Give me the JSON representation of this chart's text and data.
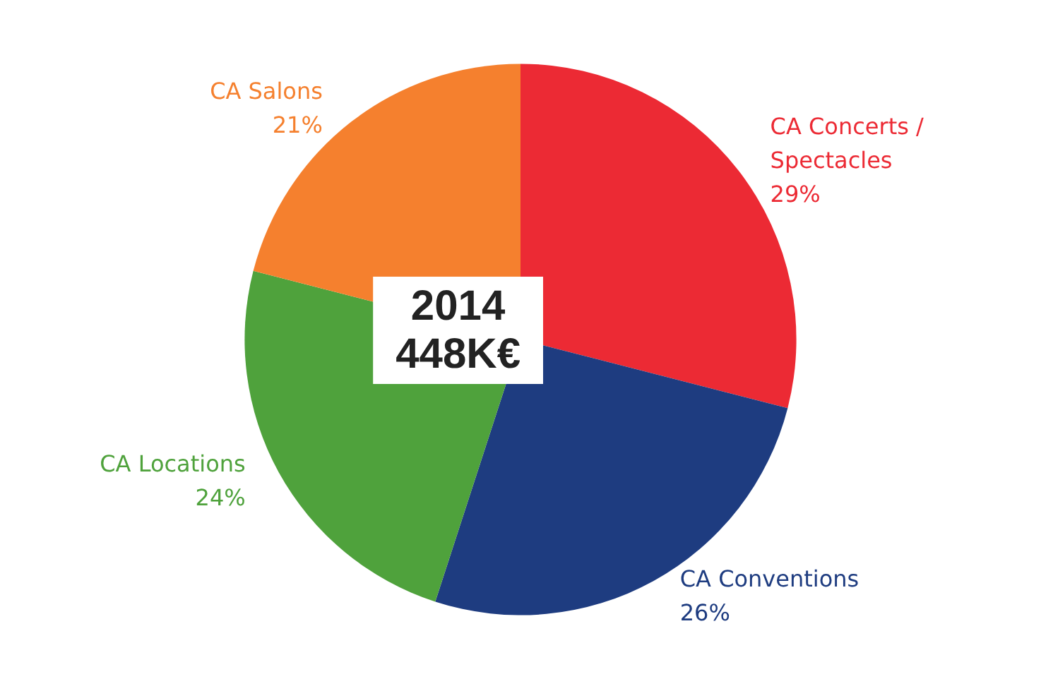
{
  "chart_data": {
    "type": "pie",
    "title": "2014",
    "subtitle": "448K€",
    "categories": [
      "CA Concerts / Spectacles",
      "CA Conventions",
      "CA Locations",
      "CA Salons"
    ],
    "values": [
      29,
      26,
      24,
      21
    ],
    "colors": [
      "#ec2a34",
      "#1e3c80",
      "#4fa23c",
      "#f5802e"
    ],
    "value_labels": [
      "29%",
      "26%",
      "24%",
      "21%"
    ],
    "legend": false
  }
}
